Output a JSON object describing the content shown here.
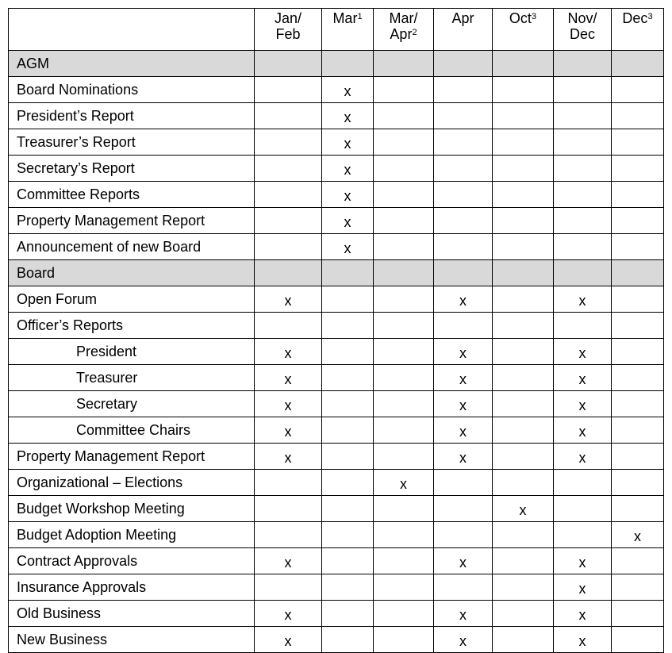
{
  "columns": [
    {
      "lines": [
        "Jan/",
        "Feb"
      ],
      "sup": ""
    },
    {
      "lines": [
        "Mar"
      ],
      "sup": "1"
    },
    {
      "lines": [
        "Mar/",
        "Apr"
      ],
      "sup": "2"
    },
    {
      "lines": [
        "Apr"
      ],
      "sup": ""
    },
    {
      "lines": [
        "Oct"
      ],
      "sup": "3"
    },
    {
      "lines": [
        "Nov/",
        "Dec"
      ],
      "sup": ""
    },
    {
      "lines": [
        "Dec"
      ],
      "sup": "3"
    }
  ],
  "section_color": "#d9d9d9",
  "rows": [
    {
      "label": "AGM",
      "section": true,
      "indent": false,
      "marks": [
        "",
        "",
        "",
        "",
        "",
        "",
        ""
      ]
    },
    {
      "label": "Board Nominations",
      "section": false,
      "indent": false,
      "marks": [
        "",
        "x",
        "",
        "",
        "",
        "",
        ""
      ]
    },
    {
      "label": "President’s Report",
      "section": false,
      "indent": false,
      "marks": [
        "",
        "x",
        "",
        "",
        "",
        "",
        ""
      ]
    },
    {
      "label": "Treasurer’s Report",
      "section": false,
      "indent": false,
      "marks": [
        "",
        "x",
        "",
        "",
        "",
        "",
        ""
      ]
    },
    {
      "label": "Secretary’s Report",
      "section": false,
      "indent": false,
      "marks": [
        "",
        "x",
        "",
        "",
        "",
        "",
        ""
      ]
    },
    {
      "label": "Committee Reports",
      "section": false,
      "indent": false,
      "marks": [
        "",
        "x",
        "",
        "",
        "",
        "",
        ""
      ]
    },
    {
      "label": "Property Management Report",
      "section": false,
      "indent": false,
      "marks": [
        "",
        "x",
        "",
        "",
        "",
        "",
        ""
      ]
    },
    {
      "label": "Announcement of new Board",
      "section": false,
      "indent": false,
      "marks": [
        "",
        "x",
        "",
        "",
        "",
        "",
        ""
      ]
    },
    {
      "label": "Board",
      "section": true,
      "indent": false,
      "marks": [
        "",
        "",
        "",
        "",
        "",
        "",
        ""
      ]
    },
    {
      "label": "Open Forum",
      "section": false,
      "indent": false,
      "marks": [
        "x",
        "",
        "",
        "x",
        "",
        "x",
        ""
      ]
    },
    {
      "label": "Officer’s Reports",
      "section": false,
      "indent": false,
      "marks": [
        "",
        "",
        "",
        "",
        "",
        "",
        ""
      ]
    },
    {
      "label": "President",
      "section": false,
      "indent": true,
      "marks": [
        "x",
        "",
        "",
        "x",
        "",
        "x",
        ""
      ]
    },
    {
      "label": "Treasurer",
      "section": false,
      "indent": true,
      "marks": [
        "x",
        "",
        "",
        "x",
        "",
        "x",
        ""
      ]
    },
    {
      "label": "Secretary",
      "section": false,
      "indent": true,
      "marks": [
        "x",
        "",
        "",
        "x",
        "",
        "x",
        ""
      ]
    },
    {
      "label": "Committee Chairs",
      "section": false,
      "indent": true,
      "marks": [
        "x",
        "",
        "",
        "x",
        "",
        "x",
        ""
      ]
    },
    {
      "label": "Property Management Report",
      "section": false,
      "indent": false,
      "marks": [
        "x",
        "",
        "",
        "x",
        "",
        "x",
        ""
      ]
    },
    {
      "label": "Organizational – Elections",
      "section": false,
      "indent": false,
      "marks": [
        "",
        "",
        "x",
        "",
        "",
        "",
        ""
      ]
    },
    {
      "label": "Budget Workshop Meeting",
      "section": false,
      "indent": false,
      "marks": [
        "",
        "",
        "",
        "",
        "x",
        "",
        ""
      ]
    },
    {
      "label": "Budget Adoption Meeting",
      "section": false,
      "indent": false,
      "marks": [
        "",
        "",
        "",
        "",
        "",
        "",
        "x"
      ]
    },
    {
      "label": "Contract Approvals",
      "section": false,
      "indent": false,
      "marks": [
        "x",
        "",
        "",
        "x",
        "",
        "x",
        ""
      ]
    },
    {
      "label": "Insurance Approvals",
      "section": false,
      "indent": false,
      "marks": [
        "",
        "",
        "",
        "",
        "",
        "x",
        ""
      ]
    },
    {
      "label": "Old Business",
      "section": false,
      "indent": false,
      "marks": [
        "x",
        "",
        "",
        "x",
        "",
        "x",
        ""
      ]
    },
    {
      "label": "New Business",
      "section": false,
      "indent": false,
      "marks": [
        "x",
        "",
        "",
        "x",
        "",
        "x",
        ""
      ]
    }
  ]
}
